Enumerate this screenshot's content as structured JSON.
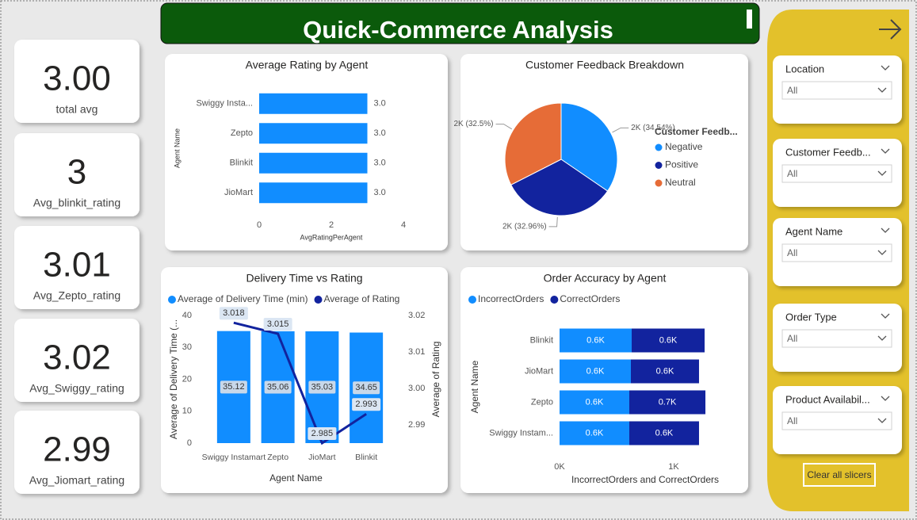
{
  "header": {
    "title": "Quick-Commerce Analysis"
  },
  "cards": [
    {
      "value": "3.00",
      "label": "total avg"
    },
    {
      "value": "3",
      "label": "Avg_blinkit_rating"
    },
    {
      "value": "3.01",
      "label": "Avg_Zepto_rating"
    },
    {
      "value": "3.02",
      "label": "Avg_Swiggy_rating"
    },
    {
      "value": "2.99",
      "label": "Avg_Jiomart_rating"
    }
  ],
  "slicers": [
    {
      "title": "Location",
      "selection": "All"
    },
    {
      "title": "Customer Feedb...",
      "selection": "All"
    },
    {
      "title": "Agent Name",
      "selection": "All"
    },
    {
      "title": "Order Type",
      "selection": "All"
    },
    {
      "title": "Product Availabil...",
      "selection": "All"
    }
  ],
  "clear_button": "Clear all slicers",
  "chart_data": [
    {
      "type": "hbar",
      "title": "Average Rating by Agent",
      "categories": [
        "Swiggy Insta...",
        "Zepto",
        "Blinkit",
        "JioMart"
      ],
      "values": [
        3.0,
        3.0,
        3.0,
        3.0
      ],
      "value_labels": [
        "3.0",
        "3.0",
        "3.0",
        "3.0"
      ],
      "color": "#118dff",
      "xlim": [
        0,
        4
      ],
      "xticks": [
        0,
        2,
        4
      ],
      "x_label": "AvgRatingPerAgent",
      "y_label": "Agent Name"
    },
    {
      "type": "pie",
      "title": "Customer Feedback Breakdown",
      "legend_title": "Customer Feedb...",
      "categories": [
        "Negative",
        "Positive",
        "Neutral"
      ],
      "values": [
        34.54,
        32.96,
        32.5
      ],
      "value_labels": [
        "2K (34.54%)",
        "2K (32.96%)",
        "2K (32.5%)"
      ],
      "colors": [
        "#118dff",
        "#12239e",
        "#e66c37"
      ]
    },
    {
      "type": "combo",
      "title": "Delivery Time vs Rating",
      "categories": [
        "Swiggy Instamart",
        "Zepto",
        "JioMart",
        "Blinkit"
      ],
      "series": [
        {
          "name": "Average of Delivery Time (min)",
          "color": "#118dff",
          "values": [
            35.12,
            35.06,
            35.03,
            34.65
          ]
        },
        {
          "name": "Average of Rating",
          "color": "#12239e",
          "values": [
            3.018,
            3.015,
            2.985,
            2.993
          ],
          "axis": "y2"
        }
      ],
      "ylim": [
        0,
        40
      ],
      "yticks": [
        0,
        10,
        20,
        30,
        40
      ],
      "y2lim": [
        2.985,
        3.02
      ],
      "y2ticks": [
        2.99,
        {
          "value": 3,
          "label": "3.00"
        },
        3.01,
        3.02
      ],
      "x_label": "Agent Name",
      "y_label": "Average of Delivery Time (...",
      "y2_label": "Average of Rating"
    },
    {
      "type": "stacked_hbar",
      "title": "Order Accuracy by Agent",
      "categories": [
        "Blinkit",
        "JioMart",
        "Zepto",
        "Swiggy Instam..."
      ],
      "series": [
        {
          "name": "IncorrectOrders",
          "color": "#118dff",
          "values": [
            632,
            625,
            611,
            611
          ],
          "value_labels": [
            "0.6K",
            "0.6K",
            "0.6K",
            "0.6K"
          ]
        },
        {
          "name": "CorrectOrders",
          "color": "#12239e",
          "values": [
            639,
            597,
            667,
            611
          ],
          "value_labels": [
            "0.6K",
            "0.6K",
            "0.7K",
            "0.6K"
          ]
        }
      ],
      "xlim": [
        0,
        1500
      ],
      "xticks": [
        {
          "value": 0,
          "label": "0K"
        },
        {
          "value": 1000,
          "label": "1K"
        }
      ],
      "x_label": "IncorrectOrders and CorrectOrders",
      "y_label": "Agent Name"
    }
  ]
}
